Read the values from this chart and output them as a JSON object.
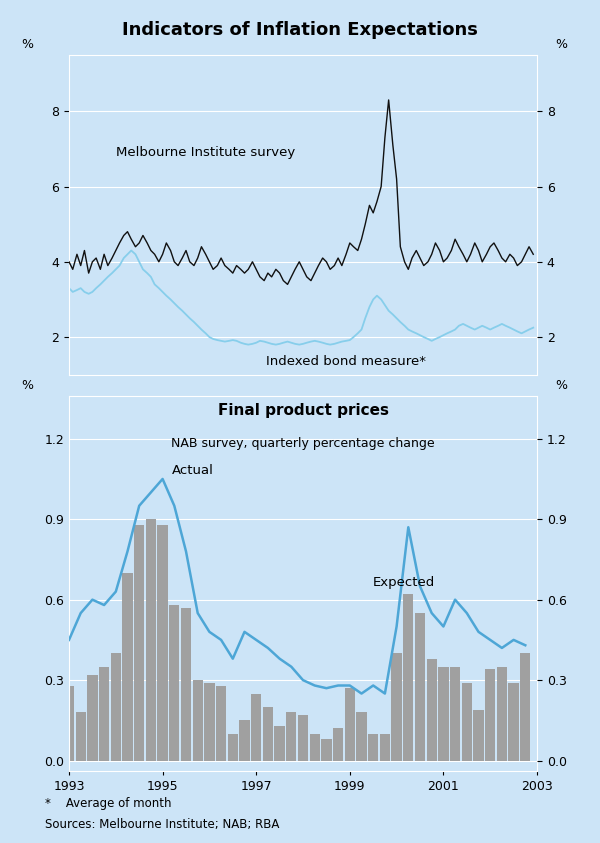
{
  "title": "Indicators of Inflation Expectations",
  "background_color": "#cce4f7",
  "panel1": {
    "ylabel_left": "%",
    "ylabel_right": "%",
    "ylim": [
      1.0,
      9.5
    ],
    "yticks": [
      2,
      4,
      6,
      8
    ],
    "label_melbourne": "Melbourne Institute survey",
    "label_bond": "Indexed bond measure*",
    "color_melbourne": "#111111",
    "color_bond": "#87ceeb",
    "melbourne_x": [
      1993.0,
      1993.08,
      1993.17,
      1993.25,
      1993.33,
      1993.42,
      1993.5,
      1993.58,
      1993.67,
      1993.75,
      1993.83,
      1993.92,
      1994.0,
      1994.08,
      1994.17,
      1994.25,
      1994.33,
      1994.42,
      1994.5,
      1994.58,
      1994.67,
      1994.75,
      1994.83,
      1994.92,
      1995.0,
      1995.08,
      1995.17,
      1995.25,
      1995.33,
      1995.42,
      1995.5,
      1995.58,
      1995.67,
      1995.75,
      1995.83,
      1995.92,
      1996.0,
      1996.08,
      1996.17,
      1996.25,
      1996.33,
      1996.42,
      1996.5,
      1996.58,
      1996.67,
      1996.75,
      1996.83,
      1996.92,
      1997.0,
      1997.08,
      1997.17,
      1997.25,
      1997.33,
      1997.42,
      1997.5,
      1997.58,
      1997.67,
      1997.75,
      1997.83,
      1997.92,
      1998.0,
      1998.08,
      1998.17,
      1998.25,
      1998.33,
      1998.42,
      1998.5,
      1998.58,
      1998.67,
      1998.75,
      1998.83,
      1998.92,
      1999.0,
      1999.08,
      1999.17,
      1999.25,
      1999.33,
      1999.42,
      1999.5,
      1999.58,
      1999.67,
      1999.75,
      1999.83,
      1999.92,
      2000.0,
      2000.08,
      2000.17,
      2000.25,
      2000.33,
      2000.42,
      2000.5,
      2000.58,
      2000.67,
      2000.75,
      2000.83,
      2000.92,
      2001.0,
      2001.08,
      2001.17,
      2001.25,
      2001.33,
      2001.42,
      2001.5,
      2001.58,
      2001.67,
      2001.75,
      2001.83,
      2001.92,
      2002.0,
      2002.08,
      2002.17,
      2002.25,
      2002.33,
      2002.42,
      2002.5,
      2002.58,
      2002.67,
      2002.75,
      2002.83,
      2002.92
    ],
    "melbourne_y": [
      4.0,
      3.8,
      4.2,
      3.9,
      4.3,
      3.7,
      4.0,
      4.1,
      3.8,
      4.2,
      3.9,
      4.1,
      4.3,
      4.5,
      4.7,
      4.8,
      4.6,
      4.4,
      4.5,
      4.7,
      4.5,
      4.3,
      4.2,
      4.0,
      4.2,
      4.5,
      4.3,
      4.0,
      3.9,
      4.1,
      4.3,
      4.0,
      3.9,
      4.1,
      4.4,
      4.2,
      4.0,
      3.8,
      3.9,
      4.1,
      3.9,
      3.8,
      3.7,
      3.9,
      3.8,
      3.7,
      3.8,
      4.0,
      3.8,
      3.6,
      3.5,
      3.7,
      3.6,
      3.8,
      3.7,
      3.5,
      3.4,
      3.6,
      3.8,
      4.0,
      3.8,
      3.6,
      3.5,
      3.7,
      3.9,
      4.1,
      4.0,
      3.8,
      3.9,
      4.1,
      3.9,
      4.2,
      4.5,
      4.4,
      4.3,
      4.6,
      5.0,
      5.5,
      5.3,
      5.6,
      6.0,
      7.3,
      8.3,
      7.1,
      6.2,
      4.4,
      4.0,
      3.8,
      4.1,
      4.3,
      4.1,
      3.9,
      4.0,
      4.2,
      4.5,
      4.3,
      4.0,
      4.1,
      4.3,
      4.6,
      4.4,
      4.2,
      4.0,
      4.2,
      4.5,
      4.3,
      4.0,
      4.2,
      4.4,
      4.5,
      4.3,
      4.1,
      4.0,
      4.2,
      4.1,
      3.9,
      4.0,
      4.2,
      4.4,
      4.2
    ],
    "bond_x": [
      1993.0,
      1993.08,
      1993.17,
      1993.25,
      1993.33,
      1993.42,
      1993.5,
      1993.58,
      1993.67,
      1993.75,
      1993.83,
      1993.92,
      1994.0,
      1994.08,
      1994.17,
      1994.25,
      1994.33,
      1994.42,
      1994.5,
      1994.58,
      1994.67,
      1994.75,
      1994.83,
      1994.92,
      1995.0,
      1995.08,
      1995.17,
      1995.25,
      1995.33,
      1995.42,
      1995.5,
      1995.58,
      1995.67,
      1995.75,
      1995.83,
      1995.92,
      1996.0,
      1996.08,
      1996.17,
      1996.25,
      1996.33,
      1996.42,
      1996.5,
      1996.58,
      1996.67,
      1996.75,
      1996.83,
      1996.92,
      1997.0,
      1997.08,
      1997.17,
      1997.25,
      1997.33,
      1997.42,
      1997.5,
      1997.58,
      1997.67,
      1997.75,
      1997.83,
      1997.92,
      1998.0,
      1998.08,
      1998.17,
      1998.25,
      1998.33,
      1998.42,
      1998.5,
      1998.58,
      1998.67,
      1998.75,
      1998.83,
      1998.92,
      1999.0,
      1999.08,
      1999.17,
      1999.25,
      1999.33,
      1999.42,
      1999.5,
      1999.58,
      1999.67,
      1999.75,
      1999.83,
      1999.92,
      2000.0,
      2000.08,
      2000.17,
      2000.25,
      2000.33,
      2000.42,
      2000.5,
      2000.58,
      2000.67,
      2000.75,
      2000.83,
      2000.92,
      2001.0,
      2001.08,
      2001.17,
      2001.25,
      2001.33,
      2001.42,
      2001.5,
      2001.58,
      2001.67,
      2001.75,
      2001.83,
      2001.92,
      2002.0,
      2002.08,
      2002.17,
      2002.25,
      2002.33,
      2002.42,
      2002.5,
      2002.58,
      2002.67,
      2002.75,
      2002.83,
      2002.92
    ],
    "bond_y": [
      3.3,
      3.2,
      3.25,
      3.3,
      3.2,
      3.15,
      3.2,
      3.3,
      3.4,
      3.5,
      3.6,
      3.7,
      3.8,
      3.9,
      4.1,
      4.2,
      4.3,
      4.2,
      4.0,
      3.8,
      3.7,
      3.6,
      3.4,
      3.3,
      3.2,
      3.1,
      3.0,
      2.9,
      2.8,
      2.7,
      2.6,
      2.5,
      2.4,
      2.3,
      2.2,
      2.1,
      2.0,
      1.95,
      1.92,
      1.9,
      1.88,
      1.9,
      1.92,
      1.9,
      1.85,
      1.82,
      1.8,
      1.82,
      1.85,
      1.9,
      1.88,
      1.85,
      1.82,
      1.8,
      1.82,
      1.85,
      1.88,
      1.85,
      1.82,
      1.8,
      1.82,
      1.85,
      1.88,
      1.9,
      1.88,
      1.85,
      1.82,
      1.8,
      1.82,
      1.85,
      1.88,
      1.9,
      1.92,
      2.0,
      2.1,
      2.2,
      2.5,
      2.8,
      3.0,
      3.1,
      3.0,
      2.85,
      2.7,
      2.6,
      2.5,
      2.4,
      2.3,
      2.2,
      2.15,
      2.1,
      2.05,
      2.0,
      1.95,
      1.9,
      1.95,
      2.0,
      2.05,
      2.1,
      2.15,
      2.2,
      2.3,
      2.35,
      2.3,
      2.25,
      2.2,
      2.25,
      2.3,
      2.25,
      2.2,
      2.25,
      2.3,
      2.35,
      2.3,
      2.25,
      2.2,
      2.15,
      2.1,
      2.15,
      2.2,
      2.25
    ]
  },
  "panel2": {
    "title1": "Final product prices",
    "title2": "NAB survey, quarterly percentage change",
    "ylabel_left": "%",
    "ylabel_right": "%",
    "ylim": [
      -0.04,
      1.36
    ],
    "yticks": [
      0.0,
      0.3,
      0.6,
      0.9,
      1.2
    ],
    "label_actual": "Actual",
    "label_expected": "Expected",
    "color_actual": "#4da6d6",
    "color_bar": "#a0a0a0",
    "bar_x": [
      1993.0,
      1993.25,
      1993.5,
      1993.75,
      1994.0,
      1994.25,
      1994.5,
      1994.75,
      1995.0,
      1995.25,
      1995.5,
      1995.75,
      1996.0,
      1996.25,
      1996.5,
      1996.75,
      1997.0,
      1997.25,
      1997.5,
      1997.75,
      1998.0,
      1998.25,
      1998.5,
      1998.75,
      1999.0,
      1999.25,
      1999.5,
      1999.75,
      2000.0,
      2000.25,
      2000.5,
      2000.75,
      2001.0,
      2001.25,
      2001.5,
      2001.75,
      2002.0,
      2002.25,
      2002.5,
      2002.75
    ],
    "bar_y": [
      0.28,
      0.18,
      0.32,
      0.35,
      0.4,
      0.7,
      0.88,
      0.9,
      0.88,
      0.58,
      0.57,
      0.3,
      0.29,
      0.28,
      0.1,
      0.15,
      0.25,
      0.2,
      0.13,
      0.18,
      0.17,
      0.1,
      0.08,
      0.12,
      0.27,
      0.18,
      0.1,
      0.1,
      0.4,
      0.62,
      0.55,
      0.38,
      0.35,
      0.35,
      0.29,
      0.19,
      0.34,
      0.35,
      0.29,
      0.4
    ],
    "actual_x": [
      1993.0,
      1993.25,
      1993.5,
      1993.75,
      1994.0,
      1994.25,
      1994.5,
      1994.75,
      1995.0,
      1995.25,
      1995.5,
      1995.75,
      1996.0,
      1996.25,
      1996.5,
      1996.75,
      1997.0,
      1997.25,
      1997.5,
      1997.75,
      1998.0,
      1998.25,
      1998.5,
      1998.75,
      1999.0,
      1999.25,
      1999.5,
      1999.75,
      2000.0,
      2000.25,
      2000.5,
      2000.75,
      2001.0,
      2001.25,
      2001.5,
      2001.75,
      2002.0,
      2002.25,
      2002.5,
      2002.75
    ],
    "actual_y": [
      0.45,
      0.55,
      0.6,
      0.58,
      0.63,
      0.78,
      0.95,
      1.0,
      1.05,
      0.95,
      0.78,
      0.55,
      0.48,
      0.45,
      0.38,
      0.48,
      0.45,
      0.42,
      0.38,
      0.35,
      0.3,
      0.28,
      0.27,
      0.28,
      0.28,
      0.25,
      0.28,
      0.25,
      0.5,
      0.87,
      0.65,
      0.55,
      0.5,
      0.6,
      0.55,
      0.48,
      0.45,
      0.42,
      0.45,
      0.43
    ],
    "footnote1": "*    Average of month",
    "footnote2": "Sources: Melbourne Institute; NAB; RBA"
  }
}
